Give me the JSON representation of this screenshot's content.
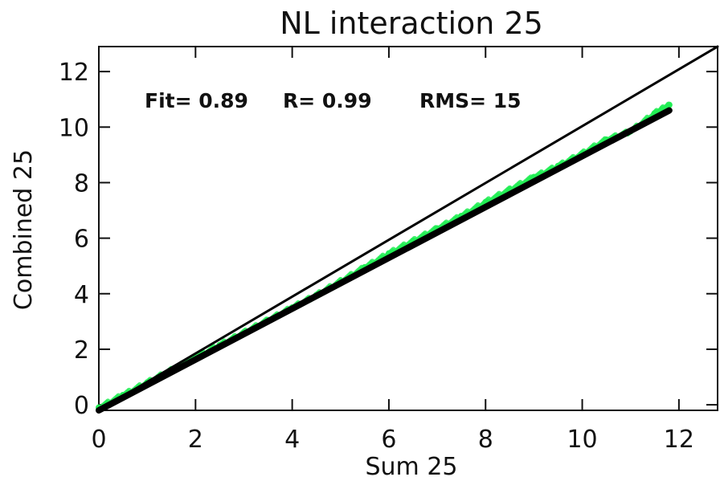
{
  "chart_data": {
    "type": "scatter",
    "title": "NL interaction 25",
    "xlabel": "Sum 25",
    "ylabel": "Combined 25",
    "xlim": [
      0,
      12.8
    ],
    "ylim": [
      -0.2,
      12.9
    ],
    "xticks": [
      0,
      2,
      4,
      6,
      8,
      10,
      12
    ],
    "yticks": [
      0,
      2,
      4,
      6,
      8,
      10,
      12
    ],
    "annotations": {
      "fit": "Fit= 0.89",
      "r": "R= 0.99",
      "rms": "RMS= 15"
    },
    "series": [
      {
        "kind": "scatter",
        "color": "#22ee55",
        "points": [
          [
            0.0,
            -0.1
          ],
          [
            0.5,
            0.35
          ],
          [
            1.0,
            0.8
          ],
          [
            1.5,
            1.25
          ],
          [
            2.0,
            1.7
          ],
          [
            2.5,
            2.15
          ],
          [
            3.0,
            2.6
          ],
          [
            3.5,
            3.05
          ],
          [
            4.0,
            3.5
          ],
          [
            4.5,
            3.95
          ],
          [
            5.0,
            4.45
          ],
          [
            5.5,
            4.95
          ],
          [
            6.0,
            5.45
          ],
          [
            6.5,
            5.9
          ],
          [
            7.0,
            6.35
          ],
          [
            7.5,
            6.8
          ],
          [
            8.0,
            7.3
          ],
          [
            8.5,
            7.75
          ],
          [
            9.0,
            8.2
          ],
          [
            9.5,
            8.6
          ],
          [
            10.0,
            9.05
          ],
          [
            10.5,
            9.55
          ],
          [
            11.0,
            9.85
          ],
          [
            11.5,
            10.5
          ],
          [
            11.8,
            10.8
          ]
        ]
      },
      {
        "kind": "line",
        "color": "#000000",
        "points": [
          [
            0.0,
            -0.2
          ],
          [
            11.8,
            10.6
          ]
        ]
      },
      {
        "kind": "line",
        "color": "#000000",
        "points": [
          [
            0.0,
            -0.2
          ],
          [
            12.8,
            12.9
          ]
        ]
      }
    ]
  }
}
